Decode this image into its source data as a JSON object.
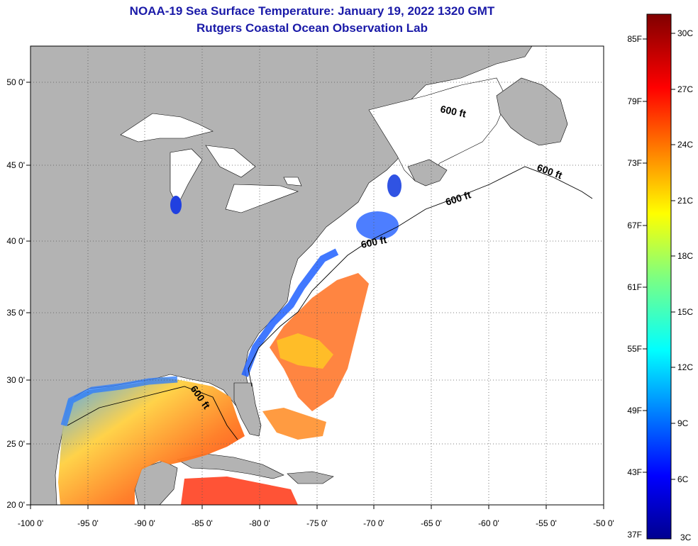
{
  "header": {
    "title": "NOAA-19 Sea Surface Temperature:  January 19, 2022 1320 GMT",
    "subtitle": "Rutgers Coastal Ocean Observation Lab"
  },
  "map": {
    "lon_labels": [
      "-100 0'",
      "-95 0'",
      "-90 0'",
      "-85 0'",
      "-80 0'",
      "-75 0'",
      "-70 0'",
      "-65 0'",
      "-60 0'",
      "-55 0'",
      "-50 0'"
    ],
    "lat_labels": [
      "50 0'",
      "45 0'",
      "40 0'",
      "35 0'",
      "30 0'",
      "25 0'",
      "20 0'"
    ],
    "contour_labels": [
      "600 ft",
      "600 ft",
      "600 ft",
      "600 ft",
      "600 ft"
    ],
    "colors": {
      "land": "#b3b3b3",
      "ocean_no_data": "#ffffff",
      "grid": "#555555"
    }
  },
  "colorbar": {
    "fahrenheit_labels": [
      "85F",
      "79F",
      "73F",
      "67F",
      "61F",
      "55F",
      "49F",
      "43F",
      "37F"
    ],
    "celsius_labels": [
      "30C",
      "27C",
      "24C",
      "21C",
      "18C",
      "15C",
      "12C",
      "9C",
      "6C",
      "3C"
    ],
    "colormap": "jet"
  }
}
